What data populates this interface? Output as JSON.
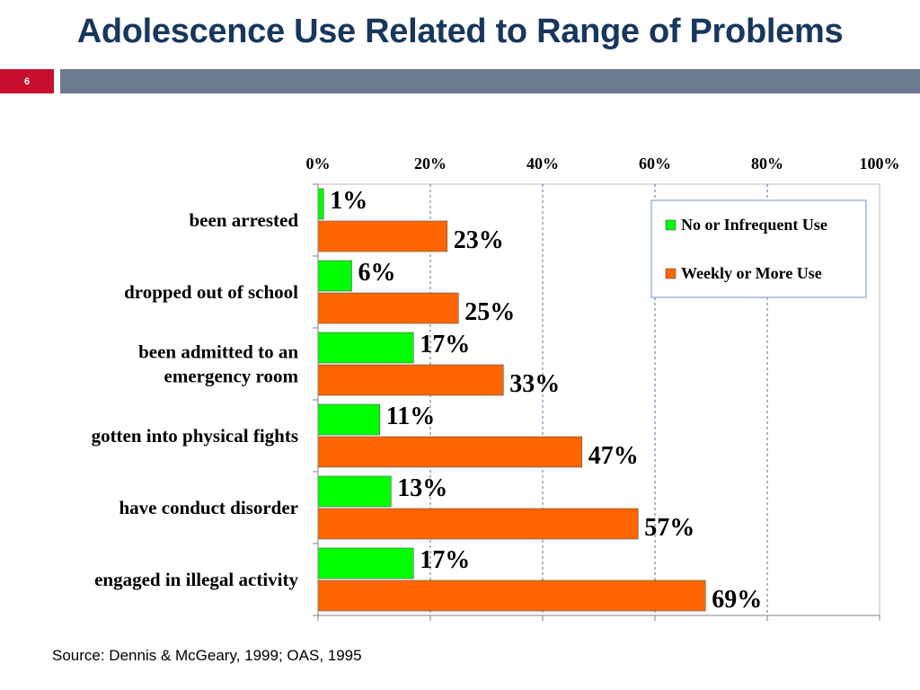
{
  "slide": {
    "title": "Adolescence Use Related to Range of Problems",
    "number": "6",
    "source": "Source: Dennis & McGeary, 1999; OAS, 1995"
  },
  "colors": {
    "title": "#17375e",
    "accent_red": "#c8102e",
    "bar_gray": "#6c7a8f",
    "series_green": "#00ff00",
    "series_orange": "#ff6600"
  },
  "chart_data": {
    "type": "bar",
    "orientation": "horizontal",
    "title": "",
    "xlabel": "",
    "ylabel": "",
    "xlim": [
      0,
      100
    ],
    "x_ticks": [
      "0%",
      "20%",
      "40%",
      "60%",
      "80%",
      "100%"
    ],
    "x_axis_position": "top",
    "grid": true,
    "legend_position": "top-right",
    "categories": [
      [
        "been arrested"
      ],
      [
        "dropped out of school"
      ],
      [
        "been admitted to an",
        "emergency room"
      ],
      [
        "gotten into physical fights"
      ],
      [
        "have conduct disorder"
      ],
      [
        "engaged in  illegal activity"
      ]
    ],
    "series": [
      {
        "name": "No or Infrequent Use",
        "color": "#00ff00",
        "values": [
          1,
          6,
          17,
          11,
          13,
          17
        ],
        "labels": [
          "1%",
          "6%",
          "17%",
          "11%",
          "13%",
          "17%"
        ]
      },
      {
        "name": "Weekly or More Use",
        "color": "#ff6600",
        "values": [
          23,
          25,
          33,
          47,
          57,
          69
        ],
        "labels": [
          "23%",
          "25%",
          "33%",
          "47%",
          "57%",
          "69%"
        ]
      }
    ]
  }
}
